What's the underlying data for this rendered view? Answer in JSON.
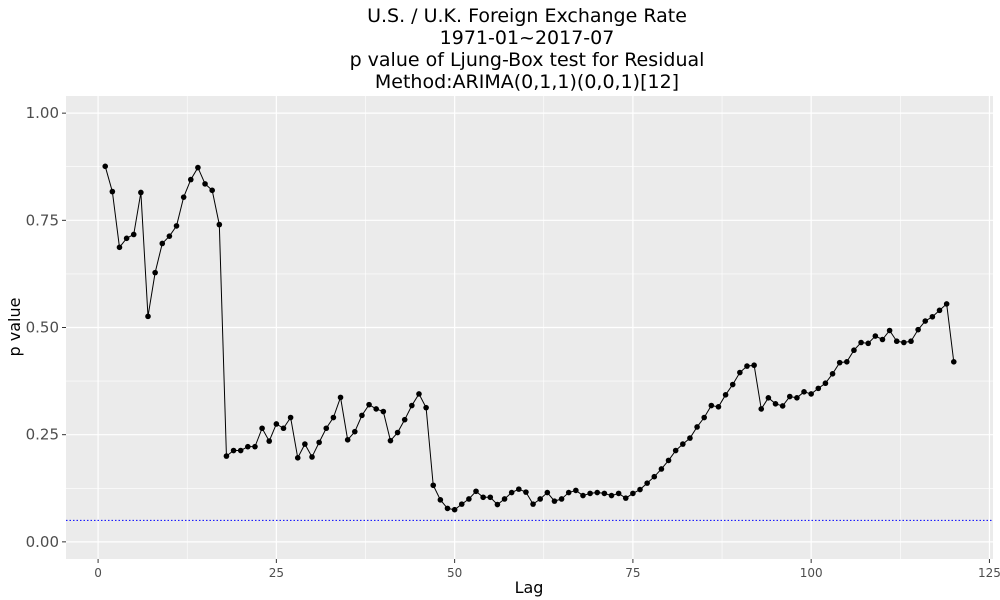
{
  "chart_data": {
    "type": "line",
    "title_lines": [
      "U.S. / U.K. Foreign Exchange Rate",
      "1971-01~2017-07",
      "p value of Ljung-Box test for Residual",
      "Method:ARIMA(0,1,1)(0,0,1)[12]"
    ],
    "xlabel": "Lag",
    "ylabel": "p value",
    "xlim": [
      -4.5,
      125.5
    ],
    "ylim": [
      -0.04,
      1.04
    ],
    "x_ticks": [
      0,
      25,
      50,
      75,
      100,
      125
    ],
    "x_tick_labels": [
      "0",
      "25",
      "50",
      "75",
      "100",
      "125"
    ],
    "y_ticks": [
      0,
      0.25,
      0.5,
      0.75,
      1.0
    ],
    "y_tick_labels": [
      "0.00",
      "0.25",
      "0.50",
      "0.75",
      "1.00"
    ],
    "grid": true,
    "colors": {
      "panel_background": "#ebebeb",
      "grid_major": "#ffffff",
      "series": "#000000",
      "reference_line": "#0000ff"
    },
    "reference_line": {
      "y": 0.05,
      "style": "dotted"
    },
    "series": [
      {
        "x": [
          1,
          2,
          3,
          4,
          5,
          6,
          7,
          8,
          9,
          10,
          11,
          12,
          13,
          14,
          15,
          16,
          17,
          18,
          19,
          20,
          21,
          22,
          23,
          24,
          25,
          26,
          27,
          28,
          29,
          30,
          31,
          32,
          33,
          34,
          35,
          36,
          37,
          38,
          39,
          40,
          41,
          42,
          43,
          44,
          45,
          46,
          47,
          48,
          49,
          50,
          51,
          52,
          53,
          54,
          55,
          56,
          57,
          58,
          59,
          60,
          61,
          62,
          63,
          64,
          65,
          66,
          67,
          68,
          69,
          70,
          71,
          72,
          73,
          74,
          75,
          76,
          77,
          78,
          79,
          80,
          81,
          82,
          83,
          84,
          85,
          86,
          87,
          88,
          89,
          90,
          91,
          92,
          93,
          94,
          95,
          96,
          97,
          98,
          99,
          100,
          101,
          102,
          103,
          104,
          105,
          106,
          107,
          108,
          109,
          110,
          111,
          112,
          113,
          114,
          115,
          116,
          117,
          118,
          119,
          120
        ],
        "y": [
          0.876,
          0.817,
          0.687,
          0.708,
          0.717,
          0.815,
          0.526,
          0.628,
          0.696,
          0.713,
          0.737,
          0.804,
          0.845,
          0.873,
          0.835,
          0.82,
          0.74,
          0.2,
          0.213,
          0.213,
          0.222,
          0.222,
          0.265,
          0.235,
          0.275,
          0.265,
          0.29,
          0.196,
          0.228,
          0.198,
          0.232,
          0.265,
          0.29,
          0.337,
          0.238,
          0.257,
          0.295,
          0.32,
          0.31,
          0.304,
          0.236,
          0.255,
          0.285,
          0.318,
          0.345,
          0.313,
          0.132,
          0.098,
          0.078,
          0.075,
          0.088,
          0.1,
          0.118,
          0.104,
          0.104,
          0.087,
          0.1,
          0.115,
          0.123,
          0.116,
          0.088,
          0.1,
          0.115,
          0.095,
          0.1,
          0.115,
          0.12,
          0.108,
          0.113,
          0.115,
          0.113,
          0.108,
          0.113,
          0.102,
          0.113,
          0.122,
          0.137,
          0.152,
          0.17,
          0.19,
          0.213,
          0.228,
          0.242,
          0.268,
          0.29,
          0.318,
          0.315,
          0.343,
          0.367,
          0.395,
          0.41,
          0.412,
          0.31,
          0.336,
          0.322,
          0.317,
          0.339,
          0.336,
          0.35,
          0.345,
          0.358,
          0.37,
          0.392,
          0.418,
          0.42,
          0.447,
          0.465,
          0.463,
          0.48,
          0.472,
          0.493,
          0.468,
          0.465,
          0.468,
          0.495,
          0.515,
          0.525,
          0.54,
          0.555,
          0.42
        ]
      }
    ]
  }
}
